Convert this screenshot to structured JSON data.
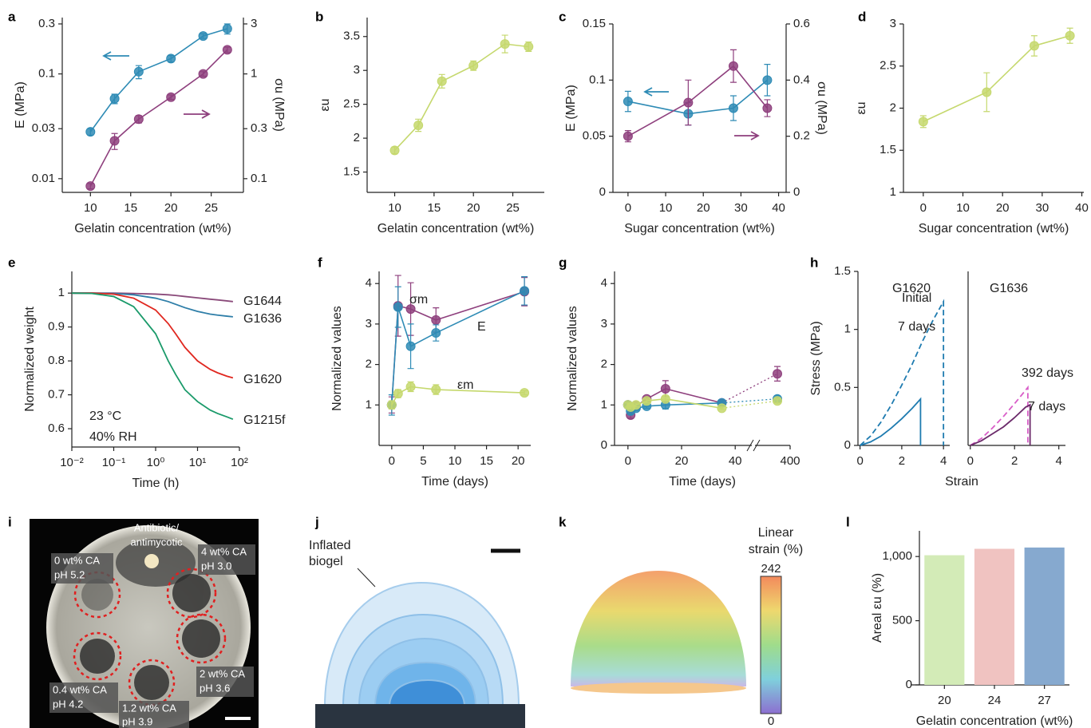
{
  "chart_data": [
    {
      "type": "line",
      "panel": "a",
      "markers": true,
      "ylog": true,
      "y2log": true,
      "x": [
        10,
        13,
        16,
        20,
        24,
        27
      ],
      "xlim": [
        6.5,
        29
      ],
      "xticks": [
        10,
        15,
        20,
        25
      ],
      "xlabel": "Gelatin concentration (wt%)",
      "ylabel": "E (MPa)",
      "y2label": "σu (MPa)",
      "ylim": [
        0.0074,
        0.345
      ],
      "yticks": [
        0.01,
        0.03,
        0.1,
        0.3
      ],
      "y2lim": [
        0.074,
        3.45
      ],
      "y2ticks": [
        0.1,
        0.3,
        1,
        3
      ],
      "series": [
        {
          "color": "#2e8bb5",
          "values": [
            0.028,
            0.058,
            0.105,
            0.14,
            0.23,
            0.27
          ],
          "errors": [
            0.002,
            0.006,
            0.015,
            0.01,
            0.012,
            0.03
          ]
        },
        {
          "color": "#8e3f7d",
          "axis": "y2",
          "values": [
            0.085,
            0.23,
            0.37,
            0.6,
            1.0,
            1.7
          ],
          "errors": [
            0.005,
            0.04,
            0.03,
            0.03,
            0.05,
            0.1
          ]
        }
      ]
    },
    {
      "type": "line",
      "panel": "b",
      "markers": true,
      "x": [
        10,
        13,
        16,
        20,
        24,
        27
      ],
      "xlim": [
        6.5,
        29
      ],
      "xticks": [
        10,
        15,
        20,
        25
      ],
      "xlabel": "Gelatin concentration (wt%)",
      "ylabel": "εu",
      "ylim": [
        1.2,
        3.78
      ],
      "yticks": [
        1.5,
        2,
        2.5,
        3,
        3.5
      ],
      "series": [
        {
          "color": "#c5d86d",
          "values": [
            1.82,
            2.19,
            2.84,
            3.07,
            3.39,
            3.35
          ],
          "errors": [
            0.05,
            0.09,
            0.1,
            0.07,
            0.13,
            0.07
          ]
        }
      ]
    },
    {
      "type": "line",
      "panel": "c",
      "markers": true,
      "x": [
        0,
        16,
        28,
        37
      ],
      "xlim": [
        -4,
        42
      ],
      "xticks": [
        0,
        10,
        20,
        30,
        40
      ],
      "xlabel": "Sugar concentration (wt%)",
      "ylabel": "E (MPa)",
      "y2label": "σu (MPa)",
      "ylim": [
        0,
        0.15
      ],
      "yticks": [
        0,
        0.05,
        0.1,
        0.15
      ],
      "y2lim": [
        0,
        0.6
      ],
      "y2ticks": [
        0,
        0.2,
        0.4,
        0.6
      ],
      "series": [
        {
          "color": "#2e8bb5",
          "values": [
            0.081,
            0.07,
            0.075,
            0.1
          ],
          "errors": [
            0.009,
            0.01,
            0.011,
            0.014
          ]
        },
        {
          "color": "#8e3f7d",
          "axis": "y2",
          "values": [
            0.2,
            0.32,
            0.45,
            0.3
          ],
          "errors": [
            0.02,
            0.08,
            0.058,
            0.03
          ]
        }
      ]
    },
    {
      "type": "line",
      "panel": "d",
      "markers": true,
      "x": [
        0,
        16,
        28,
        37
      ],
      "xlim": [
        -5,
        40.5
      ],
      "xticks": [
        0,
        10,
        20,
        30,
        40
      ],
      "xlabel": "Sugar concentration (wt%)",
      "ylabel": "εu",
      "ylim": [
        1,
        3
      ],
      "yticks": [
        1,
        1.5,
        2,
        2.5,
        3
      ],
      "series": [
        {
          "color": "#c5d86d",
          "values": [
            1.84,
            2.19,
            2.74,
            2.86
          ],
          "errors": [
            0.07,
            0.23,
            0.12,
            0.09
          ]
        }
      ]
    },
    {
      "type": "line",
      "panel": "e",
      "markers": false,
      "xlog": true,
      "x": [
        0.01,
        0.03,
        0.1,
        0.3,
        1,
        2,
        3,
        5,
        10,
        20,
        30,
        50,
        70
      ],
      "xlim": [
        0.01,
        100
      ],
      "xticks": [
        {
          "value": 0.01,
          "label": "10⁻²"
        },
        {
          "value": 0.1,
          "label": "10⁻¹"
        },
        {
          "value": 1,
          "label": "10⁰"
        },
        {
          "value": 10,
          "label": "10¹"
        },
        {
          "value": 100,
          "label": "10²"
        }
      ],
      "xlabel": "Time (h)",
      "ylabel": "Normalized weight",
      "ylim": [
        0.546,
        1.064
      ],
      "yticks": [
        0.6,
        0.7,
        0.8,
        0.9,
        1
      ],
      "annotations": [
        "23 °C",
        "40% RH"
      ],
      "series": [
        {
          "name": "G1644",
          "color": "#8a4a7a",
          "values": [
            1,
            1,
            1,
            0.999,
            0.997,
            0.995,
            0.993,
            0.99,
            0.986,
            0.982,
            0.98,
            0.977,
            0.975
          ]
        },
        {
          "name": "G1636",
          "color": "#2e7ea8",
          "values": [
            1,
            1,
            0.999,
            0.995,
            0.985,
            0.975,
            0.967,
            0.957,
            0.946,
            0.938,
            0.935,
            0.932,
            0.93
          ]
        },
        {
          "name": "G1620",
          "color": "#e0271f",
          "values": [
            1,
            1,
            0.997,
            0.985,
            0.95,
            0.91,
            0.88,
            0.84,
            0.8,
            0.775,
            0.765,
            0.755,
            0.75
          ]
        },
        {
          "name": "G1215f",
          "color": "#1a9a6a",
          "values": [
            1,
            0.999,
            0.99,
            0.96,
            0.88,
            0.8,
            0.76,
            0.715,
            0.68,
            0.655,
            0.645,
            0.635,
            0.628
          ]
        }
      ]
    },
    {
      "type": "line",
      "panel": "f",
      "markers": true,
      "x": [
        0,
        1,
        3,
        7,
        21
      ],
      "xlim": [
        -2,
        22
      ],
      "xticks": [
        0,
        5,
        10,
        15,
        20
      ],
      "xlabel": "Time (days)",
      "ylabel": "Normalized values",
      "ylim": [
        0,
        4.3
      ],
      "yticks": [
        1,
        2,
        3,
        4
      ],
      "series": [
        {
          "name": "σm",
          "color": "#8e3f7d",
          "values": [
            1,
            3.45,
            3.37,
            3.1,
            3.8
          ],
          "errors": [
            0.2,
            0.75,
            0.65,
            0.3,
            0.35
          ]
        },
        {
          "name": "E",
          "color": "#2e8bb5",
          "values": [
            1,
            3.42,
            2.45,
            2.78,
            3.82
          ],
          "errors": [
            0.25,
            0.5,
            0.55,
            0.2,
            0.35
          ]
        },
        {
          "name": "εm",
          "color": "#c5d86d",
          "values": [
            1,
            1.28,
            1.45,
            1.38,
            1.3
          ],
          "errors": [
            0.1,
            0.1,
            0.12,
            0.12,
            0.05
          ]
        }
      ]
    },
    {
      "type": "line",
      "panel": "g",
      "markers": true,
      "x": [
        0,
        1,
        3,
        7,
        14,
        35,
        392
      ],
      "xlim": [
        -5,
        400
      ],
      "xbreak": [
        45,
        380
      ],
      "xticks": [
        0,
        20,
        40,
        400
      ],
      "xlabel": "Time (days)",
      "ylabel": "Normalized values",
      "ylim": [
        0,
        4.3
      ],
      "yticks": [
        0,
        1,
        2,
        3,
        4
      ],
      "series": [
        {
          "color": "#8e3f7d",
          "values": [
            1,
            0.75,
            0.97,
            1.15,
            1.4,
            1.05,
            1.77
          ],
          "errors": [
            0.05,
            0.08,
            0.05,
            0.05,
            0.2,
            0.05,
            0.18
          ]
        },
        {
          "color": "#2e8bb5",
          "values": [
            1,
            0.85,
            0.92,
            0.97,
            1,
            1.05,
            1.15
          ],
          "errors": [
            0.05,
            0.08,
            0.05,
            0.05,
            0.1,
            0.05,
            0.08
          ]
        },
        {
          "color": "#c5d86d",
          "values": [
            1,
            0.95,
            1,
            1.1,
            1.15,
            0.92,
            1.1
          ],
          "errors": [
            0.05,
            0.05,
            0.05,
            0.05,
            0.05,
            0.03,
            0.05
          ]
        }
      ]
    },
    {
      "type": "line",
      "panel": "h",
      "markers": false,
      "subtitle": "G1620",
      "xlim": [
        -0.1,
        4.3
      ],
      "xticks": [
        0,
        2,
        4
      ],
      "xlabel": "Strain",
      "ylabel": "Stress (MPa)",
      "ylim": [
        0,
        1.5
      ],
      "yticks": [
        0,
        0.5,
        1,
        1.5
      ],
      "series": [
        {
          "name": "Initial",
          "color": "#1e7bb0",
          "x": [
            0,
            0.5,
            1,
            1.5,
            2,
            2.5,
            2.9,
            2.9
          ],
          "values": [
            0,
            0.03,
            0.08,
            0.15,
            0.23,
            0.32,
            0.4,
            0
          ]
        },
        {
          "name": "7 days",
          "color": "#1e7bb0",
          "dash": true,
          "x": [
            0,
            0.5,
            1,
            1.5,
            2,
            2.5,
            3,
            3.5,
            4,
            4
          ],
          "values": [
            0,
            0.08,
            0.2,
            0.35,
            0.52,
            0.7,
            0.9,
            1.08,
            1.24,
            0
          ]
        }
      ]
    },
    {
      "type": "line",
      "markers": false,
      "subtitle": "G1636",
      "xlim": [
        -0.1,
        4.3
      ],
      "xticks": [
        0,
        2,
        4
      ],
      "ylim": [
        0,
        1.5
      ],
      "series": [
        {
          "name": "392 days",
          "color": "#d95ec8",
          "dash": true,
          "x": [
            0,
            0.5,
            1,
            1.5,
            2,
            2.6,
            2.6
          ],
          "values": [
            0,
            0.06,
            0.15,
            0.25,
            0.36,
            0.5,
            0
          ]
        },
        {
          "name": "7 days",
          "color": "#6b2a6a",
          "x": [
            0,
            0.5,
            1,
            1.5,
            2,
            2.5,
            2.7,
            2.7
          ],
          "values": [
            0,
            0.04,
            0.1,
            0.16,
            0.24,
            0.33,
            0.35,
            0
          ]
        }
      ]
    },
    {
      "type": "bar",
      "panel": "l",
      "categories": [
        "20",
        "24",
        "27"
      ],
      "values": [
        1010,
        1060,
        1070
      ],
      "colors": [
        "#d3ebb7",
        "#f0c3c1",
        "#86a9cf"
      ],
      "xlabel": "Gelatin concentration (wt%)",
      "ylabel": "Areal εu (%)",
      "ylim": [
        0,
        1200
      ],
      "yticks": [
        0,
        500,
        {
          "value": 1000,
          "label": "1,000"
        }
      ]
    }
  ],
  "images": [
    {
      "panel": "i",
      "labels": [
        "Antibiotic/",
        "antimycotic",
        "0 wt% CA",
        "pH 5.2",
        "4 wt% CA",
        "pH 3.0",
        "0.4 wt% CA",
        "pH 4.2",
        "1.2 wt% CA",
        "pH 3.9",
        "2 wt% CA",
        "pH 3.6"
      ]
    },
    {
      "panel": "j",
      "labels": [
        "Inflated",
        "biogel"
      ]
    },
    {
      "panel": "k",
      "title": [
        "Linear",
        "strain (%)"
      ],
      "colorbar_ticks": [
        242,
        0
      ]
    }
  ]
}
